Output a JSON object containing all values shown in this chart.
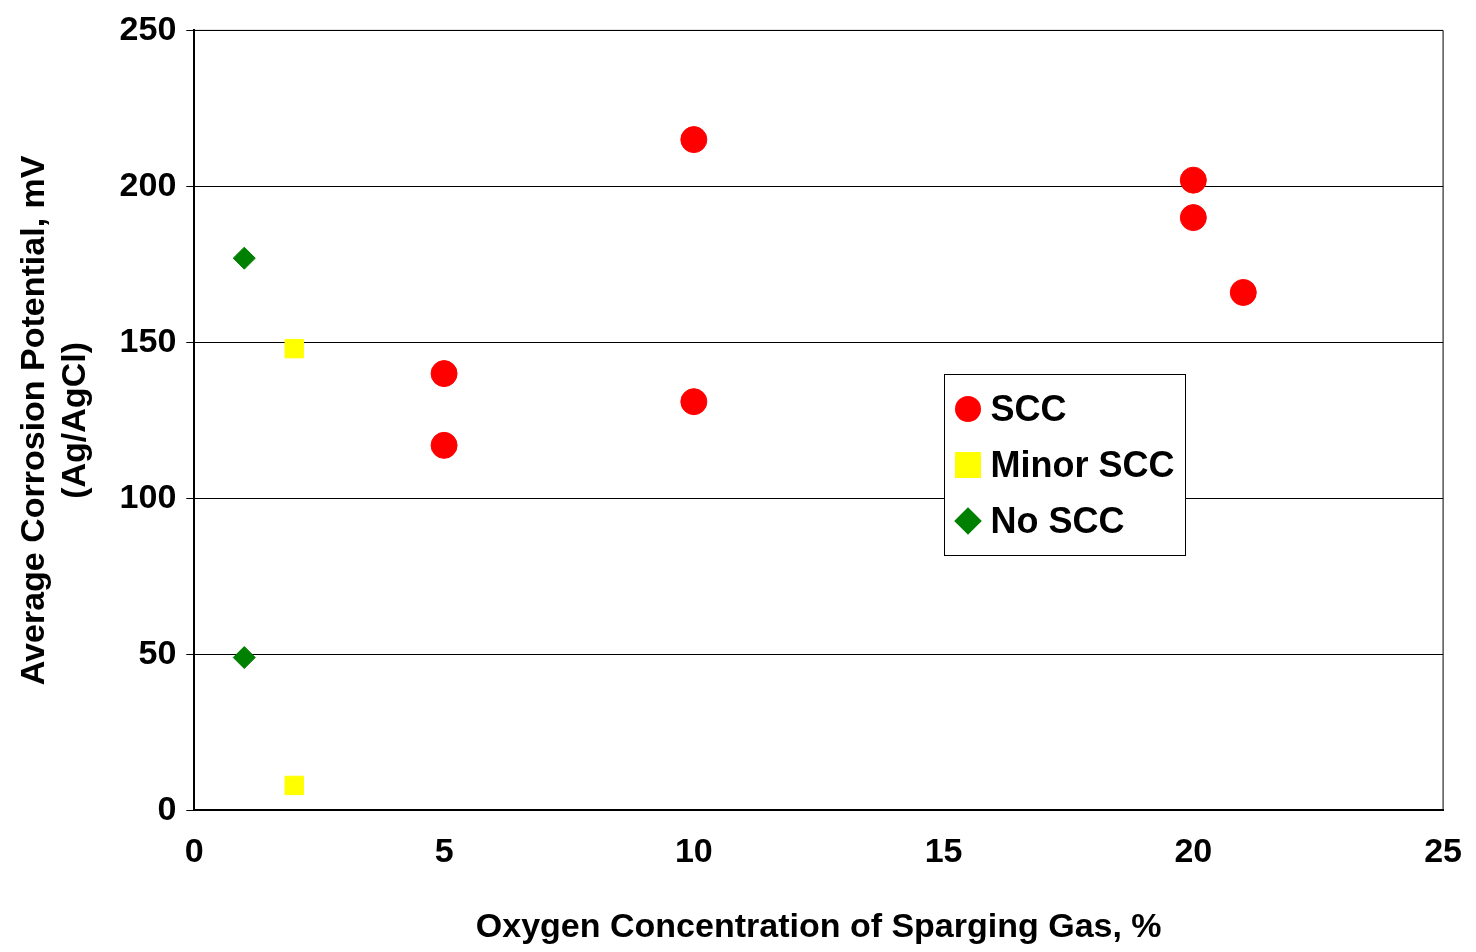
{
  "chart_data": {
    "type": "scatter",
    "xlabel": "Oxygen Concentration of Sparging Gas, %",
    "ylabel": "Average Corrosion Potential, mV\n(Ag/AgCl)",
    "xlim": [
      0,
      25
    ],
    "xticks": [
      0,
      5,
      10,
      15,
      20,
      25
    ],
    "ylim": [
      0,
      250
    ],
    "yticks": [
      0,
      50,
      100,
      150,
      200,
      250
    ],
    "grid": "y",
    "legend": "right",
    "series": [
      {
        "name": "SCC",
        "color": "#ff0000",
        "marker": "circle",
        "x": [
          5,
          5,
          10,
          10,
          20,
          20,
          21
        ],
        "values": [
          140,
          117,
          215,
          131,
          202,
          190,
          166
        ]
      },
      {
        "name": "Minor SCC",
        "color": "#ffff00",
        "marker": "square",
        "x": [
          2,
          2
        ],
        "values": [
          148,
          8
        ]
      },
      {
        "name": "No SCC",
        "color": "#008000",
        "marker": "diamond",
        "x": [
          1,
          1
        ],
        "values": [
          177,
          49
        ]
      }
    ]
  }
}
